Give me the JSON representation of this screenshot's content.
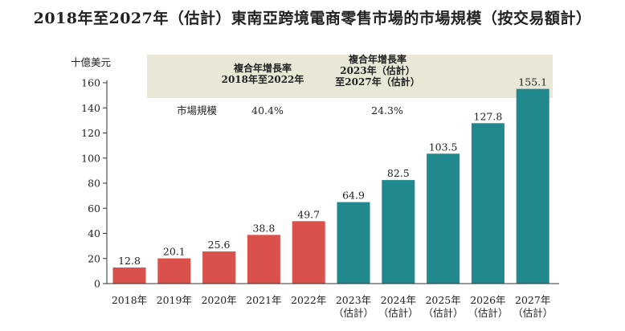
{
  "chart_data": {
    "type": "bar",
    "title": "2018年至2027年（估計）東南亞跨境電商零售市場的市場規模（按交易額計）",
    "ylabel": "十億美元",
    "ylim": [
      0,
      160
    ],
    "yticks": [
      0,
      20,
      40,
      60,
      80,
      100,
      120,
      140,
      160
    ],
    "categories": [
      [
        "2018年"
      ],
      [
        "2019年"
      ],
      [
        "2020年"
      ],
      [
        "2021年"
      ],
      [
        "2022年"
      ],
      [
        "2023年",
        "（估計）"
      ],
      [
        "2024年",
        "（估計）"
      ],
      [
        "2025年",
        "（估計）"
      ],
      [
        "2026年",
        "（估計）"
      ],
      [
        "2027年",
        "（估計）"
      ]
    ],
    "values": [
      12.8,
      20.1,
      25.6,
      38.8,
      49.7,
      64.9,
      82.5,
      103.5,
      127.8,
      155.1
    ],
    "value_labels": [
      "12.8",
      "20.1",
      "25.6",
      "38.8",
      "49.7",
      "64.9",
      "82.5",
      "103.5",
      "127.8",
      "155.1"
    ],
    "colors": {
      "historical": "#d9514a",
      "estimated": "#21898e",
      "cagr_band": "#e9e8d6",
      "axis": "#333333"
    },
    "cagr_table": {
      "row_label": "市場規模",
      "columns": [
        {
          "header": [
            "複合年增長率",
            "2018年至2022年"
          ],
          "value": "40.4%"
        },
        {
          "header": [
            "複合年增長率",
            "2023年（估計）",
            "至2027年（估計）"
          ],
          "value": "24.3%"
        }
      ]
    }
  }
}
